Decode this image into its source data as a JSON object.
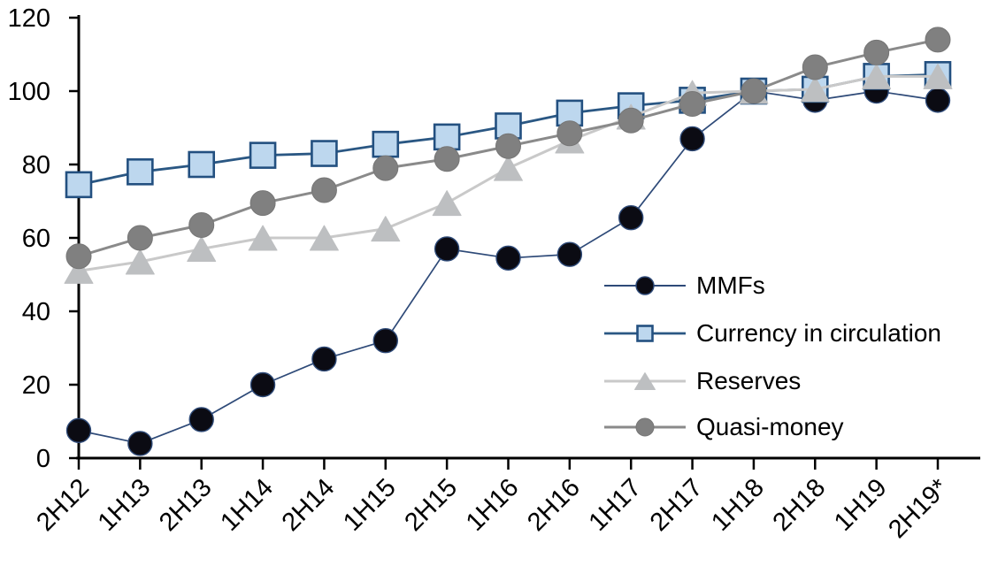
{
  "chart_data": {
    "type": "line",
    "title": "",
    "xlabel": "",
    "ylabel": "",
    "categories": [
      "2H12",
      "1H13",
      "2H13",
      "1H14",
      "2H14",
      "1H15",
      "2H15",
      "1H16",
      "2H16",
      "1H17",
      "2H17",
      "1H18",
      "2H18",
      "1H19",
      "2H19*"
    ],
    "series": [
      {
        "name": "MMFs",
        "marker": "circle",
        "values": [
          7.5,
          4,
          10.5,
          20,
          27,
          32,
          57,
          54.5,
          55.5,
          65.5,
          87,
          100,
          97.5,
          100,
          97.5
        ],
        "fill": "#0b0b13",
        "line_color": "#2e4a78",
        "marker_stroke": "#2e4a78"
      },
      {
        "name": "Currency in circulation",
        "marker": "square",
        "values": [
          74.5,
          78,
          80,
          82.5,
          83,
          85.5,
          87.5,
          90.5,
          94,
          96,
          97.5,
          100,
          100.5,
          104,
          104.5
        ],
        "fill": "#bdd7ee",
        "line_color": "#2a5783",
        "marker_stroke": "#235080"
      },
      {
        "name": "Reserves",
        "marker": "triangle",
        "values": [
          51,
          53.5,
          57,
          60,
          60,
          62.5,
          69.5,
          79,
          86.5,
          93,
          99.5,
          100,
          100.5,
          104,
          104
        ],
        "fill": "#bdbfc1",
        "line_color": "#c9c9c9",
        "marker_stroke": "#bdbfc1"
      },
      {
        "name": "Quasi-money",
        "marker": "circle",
        "values": [
          55,
          60,
          63.5,
          69.5,
          73,
          79,
          81.5,
          85,
          88.5,
          92,
          96.5,
          100,
          106.5,
          110.5,
          114
        ],
        "fill": "#808080",
        "line_color": "#8a8a8a",
        "marker_stroke": "#767676"
      }
    ],
    "y_axis": {
      "min": 0,
      "max": 120,
      "step": 20,
      "tick_labels": [
        "0",
        "20",
        "40",
        "60",
        "80",
        "100",
        "120"
      ]
    },
    "x_axis": {
      "tick_labels": [
        "2H12",
        "1H13",
        "2H13",
        "1H14",
        "2H14",
        "1H15",
        "2H15",
        "1H16",
        "2H16",
        "1H17",
        "2H17",
        "1H18",
        "2H18",
        "1H19",
        "2H19*"
      ]
    },
    "legend": {
      "position": "inside-right",
      "labels": [
        "MMFs",
        "Currency in circulation",
        "Reserves",
        "Quasi-money"
      ]
    },
    "axis_color": "#000000",
    "grid": "off"
  }
}
